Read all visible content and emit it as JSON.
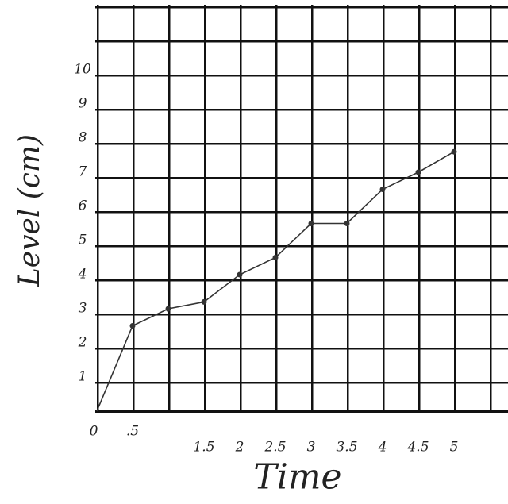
{
  "chart_data": {
    "type": "line",
    "x_label": "Time",
    "y_label": "Level (cm)",
    "x": [
      0,
      0.5,
      1,
      1.5,
      2,
      2.5,
      3,
      3.5,
      4,
      4.5,
      5
    ],
    "series": [
      {
        "color": "#333333",
        "values": [
          0,
          2.5,
          3,
          3.2,
          4,
          4.5,
          5.5,
          5.5,
          6.5,
          7,
          7.6
        ]
      }
    ],
    "xlim": [
      0,
      5.75
    ],
    "ylim": [
      0,
      11.9
    ],
    "xticks": [
      0,
      {
        "value": 0.5,
        "label": ".5"
      },
      1.5,
      2,
      2.5,
      3,
      3.5,
      4,
      4.5,
      5
    ],
    "yticks": [
      1,
      2,
      3,
      4,
      5,
      6,
      7,
      8,
      9,
      10
    ]
  }
}
